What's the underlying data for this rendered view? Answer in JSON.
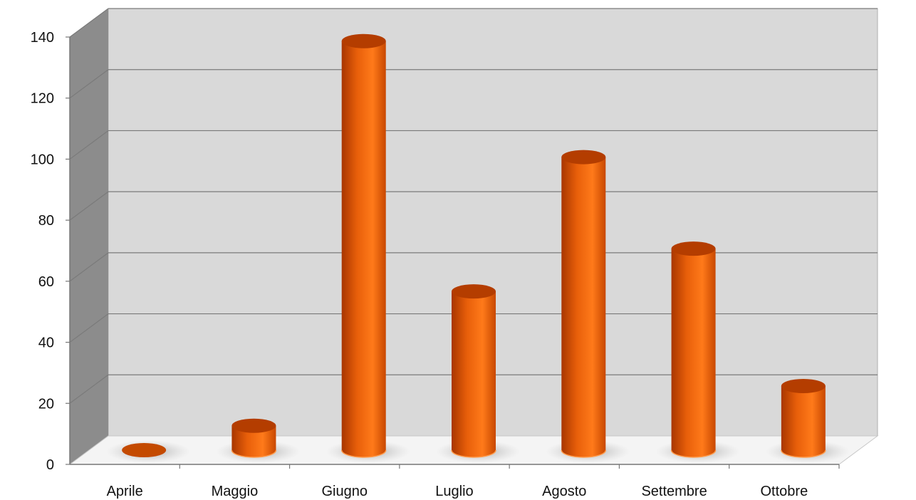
{
  "chart_data": {
    "type": "bar",
    "style": "3d-cylinder",
    "categories": [
      "Aprile",
      "Maggio",
      "Giugno",
      "Luglio",
      "Agosto",
      "Settembre",
      "Ottobre"
    ],
    "values": [
      0,
      8,
      134,
      52,
      96,
      66,
      21
    ],
    "title": "",
    "xlabel": "",
    "ylabel": "",
    "ylim": [
      0,
      140
    ],
    "yticks": [
      0,
      20,
      40,
      60,
      80,
      100,
      120,
      140
    ],
    "grid": true,
    "legend": "none",
    "colors": {
      "bar": "#f26a0e",
      "bar_dark": "#b43d00",
      "bar_light": "#ff9a4a",
      "wall": "#d9d9d9",
      "side_wall": "#8c8c8c",
      "floor": "#f4f4f4",
      "grid": "#7a7a7a"
    }
  }
}
